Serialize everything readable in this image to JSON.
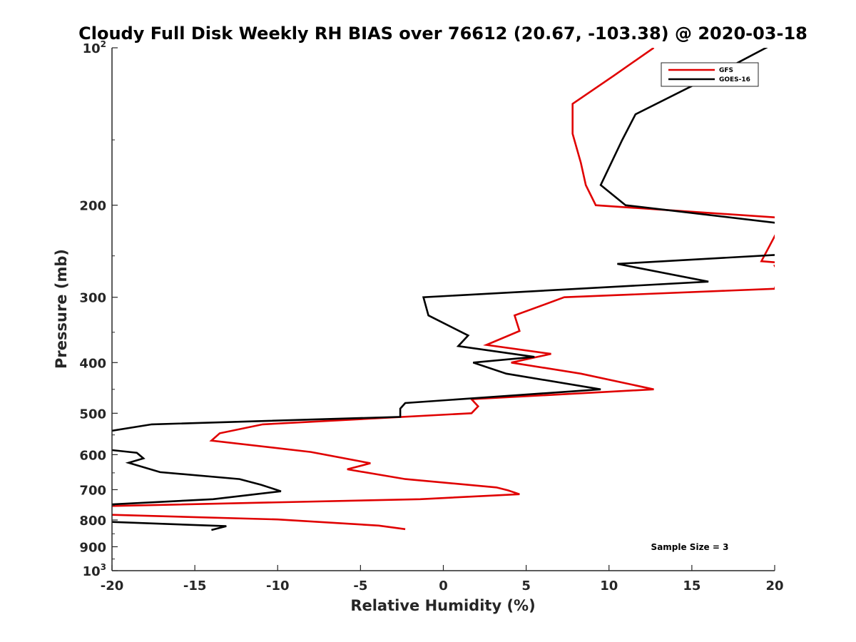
{
  "chart_data": {
    "type": "line",
    "title": "Cloudy Full Disk Weekly RH BIAS over 76612 (20.67, -103.38) @ 2020-03-18",
    "xlabel": "Relative Humidity (%)",
    "ylabel": "Pressure (mb)",
    "xlim": [
      -20,
      20
    ],
    "ylim": [
      100,
      1000
    ],
    "yscale": "log",
    "y_reversed": true,
    "x_ticks": [
      -20,
      -15,
      -10,
      -5,
      0,
      5,
      10,
      15,
      20
    ],
    "x_tick_labels": [
      "-20",
      "-15",
      "-10",
      "-5",
      "0",
      "5",
      "10",
      "15",
      "20"
    ],
    "y_ticks": [
      {
        "value": 100,
        "base": "10",
        "exp": "2"
      },
      {
        "value": 200,
        "label": "200"
      },
      {
        "value": 300,
        "label": "300"
      },
      {
        "value": 400,
        "label": "400"
      },
      {
        "value": 500,
        "label": "500"
      },
      {
        "value": 600,
        "label": "600"
      },
      {
        "value": 700,
        "label": "700"
      },
      {
        "value": 800,
        "label": "800"
      },
      {
        "value": 900,
        "label": "900"
      },
      {
        "value": 1000,
        "base": "10",
        "exp": "3"
      }
    ],
    "legend_position": "top-right",
    "annotation": "Sample Size = 3",
    "series": [
      {
        "name": "GFS",
        "color": "#e00000",
        "points": [
          [
            12.7,
            100
          ],
          [
            10.3,
            113
          ],
          [
            7.8,
            128
          ],
          [
            7.8,
            146
          ],
          [
            8.3,
            166
          ],
          [
            8.6,
            183
          ],
          [
            9.2,
            200
          ],
          [
            20.0,
            211
          ],
          [
            20.5,
            214
          ],
          [
            19.2,
            256
          ],
          [
            20.5,
            258
          ],
          [
            20.5,
            259
          ],
          [
            20.0,
            261
          ],
          [
            20.3,
            272
          ],
          [
            20.0,
            289
          ],
          [
            7.3,
            300
          ],
          [
            4.3,
            325
          ],
          [
            4.6,
            348
          ],
          [
            2.6,
            370
          ],
          [
            6.5,
            385
          ],
          [
            4.1,
            400
          ],
          [
            8.3,
            420
          ],
          [
            12.7,
            450
          ],
          [
            1.7,
            470
          ],
          [
            2.1,
            485
          ],
          [
            1.7,
            500
          ],
          [
            -10.9,
            525
          ],
          [
            -13.5,
            546
          ],
          [
            -14.0,
            564
          ],
          [
            -8.0,
            593
          ],
          [
            -4.4,
            623
          ],
          [
            -5.8,
            640
          ],
          [
            -2.3,
            668
          ],
          [
            3.2,
            693
          ],
          [
            3.9,
            702
          ],
          [
            4.6,
            714
          ],
          [
            -1.4,
            730
          ],
          [
            -20.0,
            752
          ],
          [
            -20.5,
            755
          ],
          [
            -20.5,
            781
          ],
          [
            -20.0,
            782
          ],
          [
            -10.0,
            798
          ],
          [
            -3.9,
            820
          ],
          [
            -2.3,
            833
          ]
        ]
      },
      {
        "name": "GOES-16",
        "color": "#000000",
        "points": [
          [
            20.5,
            95
          ],
          [
            20.0,
            98
          ],
          [
            17.0,
            110
          ],
          [
            11.6,
            134
          ],
          [
            10.8,
            150
          ],
          [
            9.5,
            183
          ],
          [
            11.0,
            200
          ],
          [
            20.0,
            216
          ],
          [
            20.5,
            218
          ],
          [
            20.5,
            248
          ],
          [
            20.0,
            249
          ],
          [
            10.5,
            259
          ],
          [
            16.0,
            280
          ],
          [
            -1.2,
            300
          ],
          [
            -0.9,
            325
          ],
          [
            1.5,
            355
          ],
          [
            0.9,
            372
          ],
          [
            5.5,
            390
          ],
          [
            1.8,
            400
          ],
          [
            3.8,
            420
          ],
          [
            9.5,
            450
          ],
          [
            -2.3,
            478
          ],
          [
            -2.6,
            490
          ],
          [
            -2.6,
            508
          ],
          [
            -17.6,
            525
          ],
          [
            -20.0,
            540
          ],
          [
            -20.5,
            542
          ],
          [
            -20.5,
            585
          ],
          [
            -20.0,
            588
          ],
          [
            -18.5,
            595
          ],
          [
            -18.1,
            610
          ],
          [
            -19.0,
            622
          ],
          [
            -17.1,
            648
          ],
          [
            -12.3,
            668
          ],
          [
            -11.0,
            685
          ],
          [
            -9.8,
            705
          ],
          [
            -13.9,
            730
          ],
          [
            -20.0,
            747
          ],
          [
            -20.5,
            748
          ],
          [
            -20.5,
            807
          ],
          [
            -20.0,
            807
          ],
          [
            -13.1,
            822
          ],
          [
            -14.0,
            836
          ]
        ]
      }
    ]
  }
}
